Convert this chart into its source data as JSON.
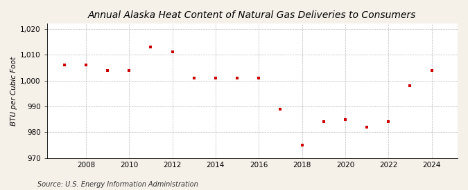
{
  "title": "Annual Alaska Heat Content of Natural Gas Deliveries to Consumers",
  "ylabel": "BTU per Cubic Foot",
  "source": "Source: U.S. Energy Information Administration",
  "years": [
    2007,
    2008,
    2009,
    2010,
    2011,
    2012,
    2013,
    2014,
    2015,
    2016,
    2017,
    2018,
    2019,
    2020,
    2021,
    2022,
    2023,
    2024
  ],
  "values": [
    1006,
    1006,
    1004,
    1004,
    1013,
    1011,
    1001,
    1001,
    1001,
    1001,
    989,
    975,
    984,
    985,
    982,
    984,
    998,
    1004
  ],
  "marker_color": "#cc0000",
  "marker": "s",
  "marker_size": 3.5,
  "bg_color": "#f5f0e8",
  "plot_bg_color": "#ffffff",
  "grid_color": "#aaaaaa",
  "title_fontsize": 10,
  "label_fontsize": 7.5,
  "tick_fontsize": 7.5,
  "source_fontsize": 7,
  "ylim": [
    970,
    1022
  ],
  "yticks": [
    970,
    980,
    990,
    1000,
    1010,
    1020
  ],
  "xticks": [
    2008,
    2010,
    2012,
    2014,
    2016,
    2018,
    2020,
    2022,
    2024
  ],
  "xlim": [
    2006.2,
    2025.2
  ]
}
